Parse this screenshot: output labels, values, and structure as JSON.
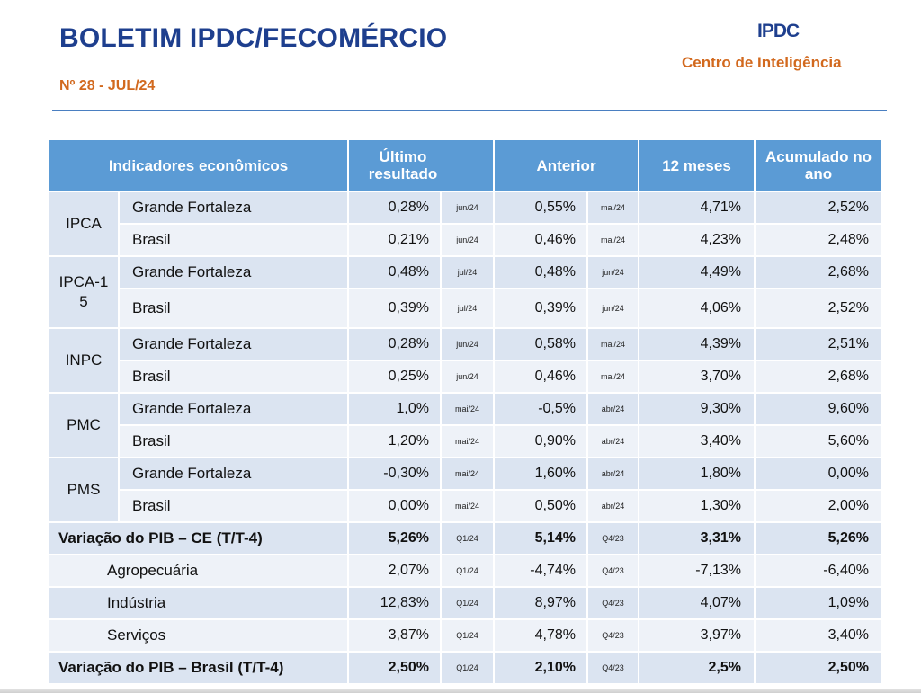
{
  "header": {
    "title": "BOLETIM IPDC/FECOMÉRCIO",
    "subtitle": "Nº 28 - JUL/24",
    "logo": "IPDC",
    "org": "Centro de Inteligência"
  },
  "table": {
    "headers": {
      "indicators": "Indicadores econômicos",
      "last": "Último resultado",
      "previous": "Anterior",
      "twelve": "12 meses",
      "ytd": "Acumulado no ano"
    },
    "groups": [
      {
        "name": "IPCA",
        "rows": [
          {
            "region": "Grande Fortaleza",
            "last": "0,28%",
            "last_period": "jun/24",
            "prev": "0,55%",
            "prev_period": "mai/24",
            "twelve": "4,71%",
            "ytd": "2,52%"
          },
          {
            "region": "Brasil",
            "last": "0,21%",
            "last_period": "jun/24",
            "prev": "0,46%",
            "prev_period": "mai/24",
            "twelve": "4,23%",
            "ytd": "2,48%"
          }
        ]
      },
      {
        "name": "IPCA-15",
        "rows": [
          {
            "region": "Grande Fortaleza",
            "last": "0,48%",
            "last_period": "jul/24",
            "prev": "0,48%",
            "prev_period": "jun/24",
            "twelve": "4,49%",
            "ytd": "2,68%"
          },
          {
            "region": "Brasil",
            "last": "0,39%",
            "last_period": "jul/24",
            "prev": "0,39%",
            "prev_period": "jun/24",
            "twelve": "4,06%",
            "ytd": "2,52%"
          }
        ]
      },
      {
        "name": "INPC",
        "rows": [
          {
            "region": "Grande Fortaleza",
            "last": "0,28%",
            "last_period": "jun/24",
            "prev": "0,58%",
            "prev_period": "mai/24",
            "twelve": "4,39%",
            "ytd": "2,51%"
          },
          {
            "region": "Brasil",
            "last": "0,25%",
            "last_period": "jun/24",
            "prev": "0,46%",
            "prev_period": "mai/24",
            "twelve": "3,70%",
            "ytd": "2,68%"
          }
        ]
      },
      {
        "name": "PMC",
        "rows": [
          {
            "region": "Grande Fortaleza",
            "last": "1,0%",
            "last_period": "mai/24",
            "prev": "-0,5%",
            "prev_period": "abr/24",
            "twelve": "9,30%",
            "ytd": "9,60%"
          },
          {
            "region": "Brasil",
            "last": "1,20%",
            "last_period": "mai/24",
            "prev": "0,90%",
            "prev_period": "abr/24",
            "twelve": "3,40%",
            "ytd": "5,60%"
          }
        ]
      },
      {
        "name": "PMS",
        "rows": [
          {
            "region": "Grande Fortaleza",
            "last": "-0,30%",
            "last_period": "mai/24",
            "prev": "1,60%",
            "prev_period": "abr/24",
            "twelve": "1,80%",
            "ytd": "0,00%"
          },
          {
            "region": "Brasil",
            "last": "0,00%",
            "last_period": "mai/24",
            "prev": "0,50%",
            "prev_period": "abr/24",
            "twelve": "1,30%",
            "ytd": "2,00%"
          }
        ]
      }
    ],
    "pib_ce": {
      "label": "Variação do PIB – CE (T/T-4)",
      "last": "5,26%",
      "last_period": "Q1/24",
      "prev": "5,14%",
      "prev_period": "Q4/23",
      "twelve": "3,31%",
      "ytd": "5,26%",
      "sectors": [
        {
          "label": "Agropecuária",
          "last": "2,07%",
          "last_period": "Q1/24",
          "prev": "-4,74%",
          "prev_period": "Q4/23",
          "twelve": "-7,13%",
          "ytd": "-6,40%"
        },
        {
          "label": "Indústria",
          "last": "12,83%",
          "last_period": "Q1/24",
          "prev": "8,97%",
          "prev_period": "Q4/23",
          "twelve": "4,07%",
          "ytd": "1,09%"
        },
        {
          "label": "Serviços",
          "last": "3,87%",
          "last_period": "Q1/24",
          "prev": "4,78%",
          "prev_period": "Q4/23",
          "twelve": "3,97%",
          "ytd": "3,40%"
        }
      ]
    },
    "pib_br": {
      "label": "Variação do PIB – Brasil (T/T-4)",
      "last": "2,50%",
      "last_period": "Q1/24",
      "prev": "2,10%",
      "prev_period": "Q4/23",
      "twelve": "2,5%",
      "ytd": "2,50%"
    }
  }
}
